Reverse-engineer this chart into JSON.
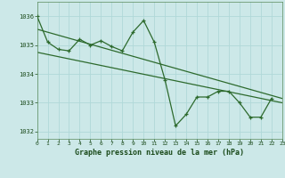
{
  "x": [
    0,
    1,
    2,
    3,
    4,
    5,
    6,
    7,
    8,
    9,
    10,
    11,
    12,
    13,
    14,
    15,
    16,
    17,
    18,
    19,
    20,
    21,
    22,
    23
  ],
  "y_main": [
    1036.0,
    1035.1,
    1034.85,
    1034.8,
    1035.2,
    1035.0,
    1035.15,
    1034.95,
    1034.8,
    1035.45,
    1035.85,
    1035.1,
    1033.8,
    1032.2,
    1032.6,
    1033.2,
    1033.2,
    1033.4,
    1033.4,
    1033.0,
    1032.5,
    1032.5,
    1033.15,
    null
  ],
  "trend1_x": [
    0,
    23
  ],
  "trend1_y": [
    1035.55,
    1033.15
  ],
  "trend2_x": [
    0,
    23
  ],
  "trend2_y": [
    1034.75,
    1033.0
  ],
  "line_color": "#2d6a2d",
  "bg_color": "#cce8e8",
  "grid_color": "#b0d8d8",
  "label_bg": "#3a7a3a",
  "xlabel": "Graphe pression niveau de la mer (hPa)",
  "ylim": [
    1031.75,
    1036.5
  ],
  "yticks": [
    1032,
    1033,
    1034,
    1035,
    1036
  ],
  "xlim": [
    0,
    23
  ],
  "xticks": [
    0,
    1,
    2,
    3,
    4,
    5,
    6,
    7,
    8,
    9,
    10,
    11,
    12,
    13,
    14,
    15,
    16,
    17,
    18,
    19,
    20,
    21,
    22,
    23
  ]
}
